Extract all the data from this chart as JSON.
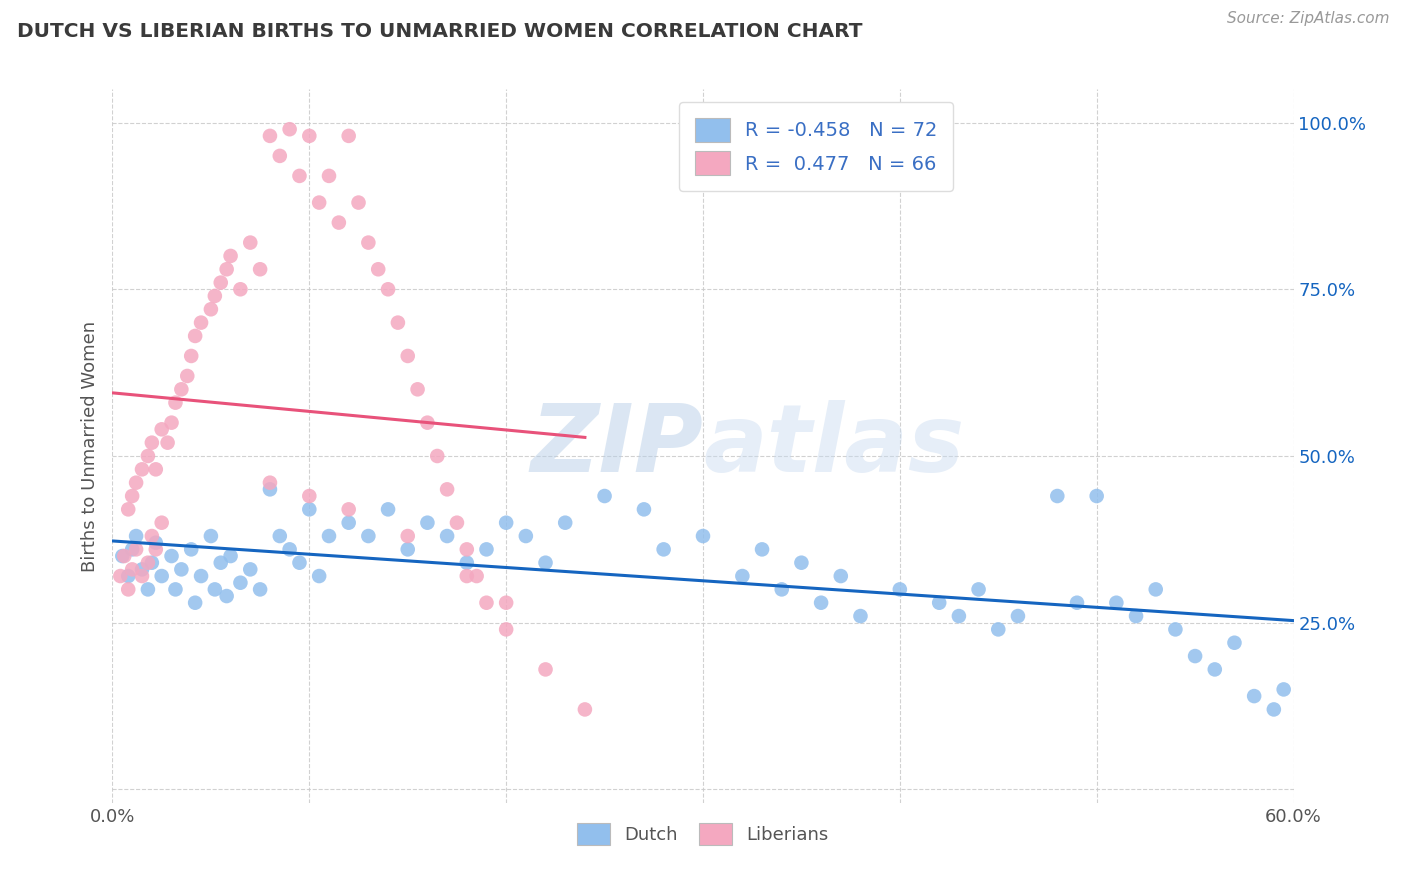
{
  "title": "DUTCH VS LIBERIAN BIRTHS TO UNMARRIED WOMEN CORRELATION CHART",
  "source": "Source: ZipAtlas.com",
  "ylabel": "Births to Unmarried Women",
  "xlim": [
    0.0,
    0.6
  ],
  "ylim": [
    -0.02,
    1.05
  ],
  "ytick_positions": [
    0.0,
    0.25,
    0.5,
    0.75,
    1.0
  ],
  "yticklabels": [
    "",
    "25.0%",
    "50.0%",
    "75.0%",
    "100.0%"
  ],
  "dutch_color": "#92BFED",
  "liberian_color": "#F4A8C0",
  "dutch_line_color": "#1565C0",
  "liberian_line_color": "#E8527A",
  "legend_R_dutch": "-0.458",
  "legend_N_dutch": "72",
  "legend_R_liberian": "0.477",
  "legend_N_liberian": "66",
  "watermark_zip": "ZIP",
  "watermark_atlas": "atlas",
  "dutch_scatter_x": [
    0.005,
    0.008,
    0.01,
    0.012,
    0.015,
    0.018,
    0.02,
    0.022,
    0.025,
    0.03,
    0.032,
    0.035,
    0.04,
    0.042,
    0.045,
    0.05,
    0.052,
    0.055,
    0.058,
    0.06,
    0.065,
    0.07,
    0.075,
    0.08,
    0.085,
    0.09,
    0.095,
    0.1,
    0.105,
    0.11,
    0.12,
    0.13,
    0.14,
    0.15,
    0.16,
    0.17,
    0.18,
    0.19,
    0.2,
    0.21,
    0.22,
    0.23,
    0.25,
    0.27,
    0.28,
    0.3,
    0.32,
    0.33,
    0.34,
    0.35,
    0.36,
    0.37,
    0.38,
    0.4,
    0.42,
    0.43,
    0.44,
    0.45,
    0.46,
    0.48,
    0.49,
    0.5,
    0.51,
    0.52,
    0.53,
    0.54,
    0.55,
    0.56,
    0.57,
    0.58,
    0.59,
    0.595
  ],
  "dutch_scatter_y": [
    0.35,
    0.32,
    0.36,
    0.38,
    0.33,
    0.3,
    0.34,
    0.37,
    0.32,
    0.35,
    0.3,
    0.33,
    0.36,
    0.28,
    0.32,
    0.38,
    0.3,
    0.34,
    0.29,
    0.35,
    0.31,
    0.33,
    0.3,
    0.45,
    0.38,
    0.36,
    0.34,
    0.42,
    0.32,
    0.38,
    0.4,
    0.38,
    0.42,
    0.36,
    0.4,
    0.38,
    0.34,
    0.36,
    0.4,
    0.38,
    0.34,
    0.4,
    0.44,
    0.42,
    0.36,
    0.38,
    0.32,
    0.36,
    0.3,
    0.34,
    0.28,
    0.32,
    0.26,
    0.3,
    0.28,
    0.26,
    0.3,
    0.24,
    0.26,
    0.44,
    0.28,
    0.44,
    0.28,
    0.26,
    0.3,
    0.24,
    0.2,
    0.18,
    0.22,
    0.14,
    0.12,
    0.15
  ],
  "liberian_scatter_x": [
    0.004,
    0.006,
    0.008,
    0.01,
    0.012,
    0.015,
    0.018,
    0.02,
    0.022,
    0.025,
    0.008,
    0.01,
    0.012,
    0.015,
    0.018,
    0.02,
    0.022,
    0.025,
    0.028,
    0.03,
    0.032,
    0.035,
    0.038,
    0.04,
    0.042,
    0.045,
    0.05,
    0.052,
    0.055,
    0.058,
    0.06,
    0.065,
    0.07,
    0.075,
    0.08,
    0.085,
    0.09,
    0.095,
    0.1,
    0.105,
    0.11,
    0.115,
    0.12,
    0.125,
    0.13,
    0.135,
    0.14,
    0.145,
    0.15,
    0.155,
    0.16,
    0.165,
    0.17,
    0.175,
    0.18,
    0.185,
    0.19,
    0.2,
    0.22,
    0.24,
    0.08,
    0.1,
    0.12,
    0.15,
    0.18,
    0.2
  ],
  "liberian_scatter_y": [
    0.32,
    0.35,
    0.3,
    0.33,
    0.36,
    0.32,
    0.34,
    0.38,
    0.36,
    0.4,
    0.42,
    0.44,
    0.46,
    0.48,
    0.5,
    0.52,
    0.48,
    0.54,
    0.52,
    0.55,
    0.58,
    0.6,
    0.62,
    0.65,
    0.68,
    0.7,
    0.72,
    0.74,
    0.76,
    0.78,
    0.8,
    0.75,
    0.82,
    0.78,
    0.98,
    0.95,
    0.99,
    0.92,
    0.98,
    0.88,
    0.92,
    0.85,
    0.98,
    0.88,
    0.82,
    0.78,
    0.75,
    0.7,
    0.65,
    0.6,
    0.55,
    0.5,
    0.45,
    0.4,
    0.36,
    0.32,
    0.28,
    0.24,
    0.18,
    0.12,
    0.46,
    0.44,
    0.42,
    0.38,
    0.32,
    0.28
  ]
}
